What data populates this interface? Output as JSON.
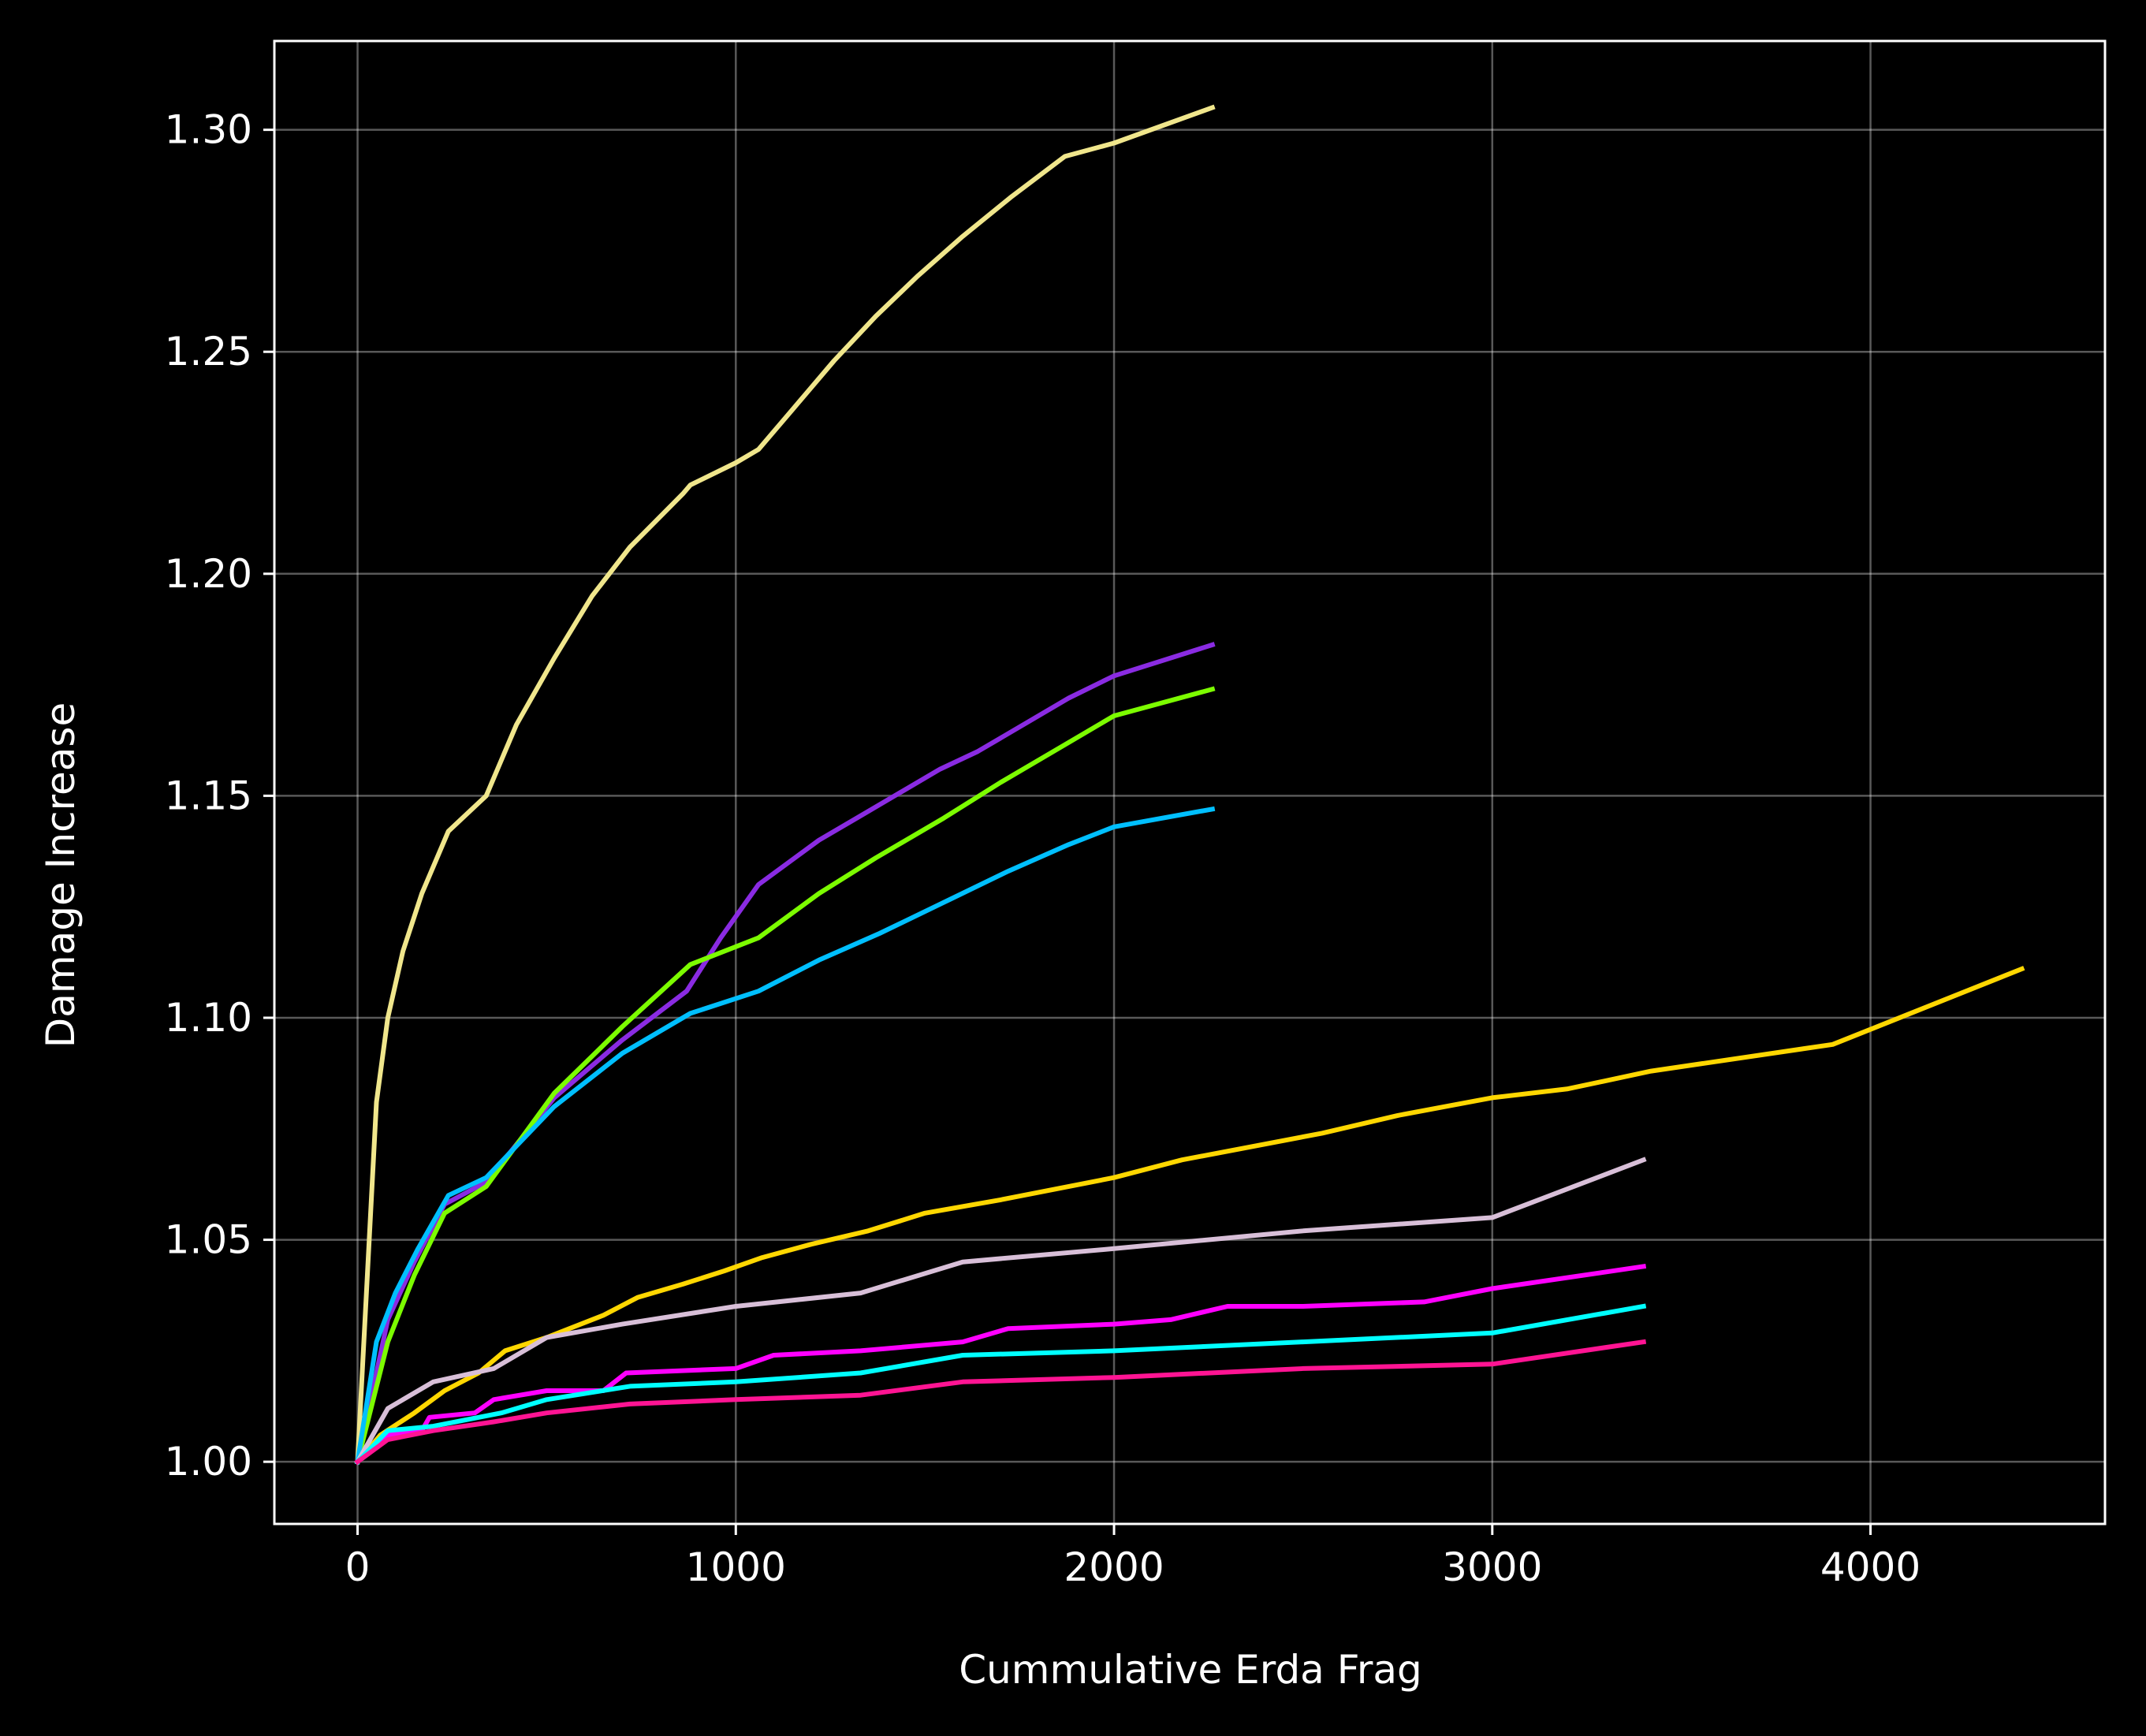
{
  "chart_data": {
    "type": "line",
    "title": "",
    "xlabel": "Cummulative Erda Frag",
    "ylabel": "Damage Increase",
    "xlim": [
      -220,
      4620
    ],
    "ylim": [
      0.986,
      1.32
    ],
    "xticks": [
      0,
      1000,
      2000,
      3000,
      4000
    ],
    "xtick_labels": [
      "0",
      "1000",
      "2000",
      "3000",
      "4000"
    ],
    "yticks": [
      1.0,
      1.05,
      1.1,
      1.15,
      1.2,
      1.25,
      1.3
    ],
    "ytick_labels": [
      "1.00",
      "1.05",
      "1.10",
      "1.15",
      "1.20",
      "1.25",
      "1.30"
    ],
    "grid": true,
    "background": "#000000",
    "series": [
      {
        "color": "#f0e68c",
        "x": [
          0,
          50,
          80,
          120,
          170,
          240,
          340,
          420,
          520,
          620,
          720,
          860,
          880,
          1000,
          1060,
          1150,
          1260,
          1370,
          1480,
          1600,
          1730,
          1870,
          2000,
          2260
        ],
        "y": [
          1.0,
          1.081,
          1.1,
          1.115,
          1.128,
          1.142,
          1.15,
          1.166,
          1.181,
          1.195,
          1.206,
          1.218,
          1.22,
          1.225,
          1.228,
          1.237,
          1.248,
          1.258,
          1.267,
          1.276,
          1.285,
          1.294,
          1.297,
          1.305
        ]
      },
      {
        "color": "#8a2be2",
        "x": [
          0,
          80,
          150,
          230,
          340,
          520,
          700,
          870,
          960,
          1060,
          1220,
          1320,
          1540,
          1640,
          1880,
          2000,
          2260
        ],
        "y": [
          1.0,
          1.032,
          1.045,
          1.058,
          1.063,
          1.082,
          1.095,
          1.106,
          1.118,
          1.13,
          1.14,
          1.145,
          1.156,
          1.16,
          1.172,
          1.177,
          1.184
        ]
      },
      {
        "color": "#7cfc00",
        "x": [
          0,
          80,
          150,
          230,
          340,
          520,
          700,
          880,
          1060,
          1220,
          1370,
          1550,
          1700,
          1880,
          2000,
          2260
        ],
        "y": [
          1.0,
          1.027,
          1.042,
          1.056,
          1.062,
          1.083,
          1.098,
          1.112,
          1.118,
          1.128,
          1.136,
          1.145,
          1.153,
          1.162,
          1.168,
          1.174
        ]
      },
      {
        "color": "#00bfff",
        "x": [
          0,
          50,
          100,
          160,
          240,
          340,
          520,
          700,
          880,
          1060,
          1220,
          1380,
          1550,
          1720,
          1880,
          2000,
          2260
        ],
        "y": [
          1.0,
          1.027,
          1.038,
          1.048,
          1.06,
          1.064,
          1.08,
          1.092,
          1.101,
          1.106,
          1.113,
          1.119,
          1.126,
          1.133,
          1.139,
          1.143,
          1.147
        ]
      },
      {
        "color": "#ffd700",
        "x": [
          0,
          60,
          150,
          230,
          320,
          390,
          500,
          650,
          740,
          860,
          970,
          1070,
          1200,
          1350,
          1500,
          1700,
          2000,
          2180,
          2550,
          2750,
          3000,
          3200,
          3420,
          3900,
          4400
        ],
        "y": [
          1.0,
          1.006,
          1.011,
          1.016,
          1.02,
          1.025,
          1.028,
          1.033,
          1.037,
          1.04,
          1.043,
          1.046,
          1.049,
          1.052,
          1.056,
          1.059,
          1.064,
          1.068,
          1.074,
          1.078,
          1.082,
          1.084,
          1.088,
          1.094,
          1.111
        ]
      },
      {
        "color": "#d8bfd8",
        "x": [
          0,
          80,
          200,
          360,
          500,
          700,
          1000,
          1330,
          1600,
          2000,
          2500,
          3000,
          3400
        ],
        "y": [
          1.0,
          1.012,
          1.018,
          1.021,
          1.028,
          1.031,
          1.035,
          1.038,
          1.045,
          1.048,
          1.052,
          1.055,
          1.068
        ]
      },
      {
        "color": "#ff00ff",
        "x": [
          0,
          80,
          170,
          190,
          310,
          360,
          500,
          650,
          710,
          1000,
          1100,
          1330,
          1600,
          1720,
          2000,
          2150,
          2300,
          2500,
          2820,
          3000,
          3400
        ],
        "y": [
          1.0,
          1.006,
          1.007,
          1.01,
          1.011,
          1.014,
          1.016,
          1.016,
          1.02,
          1.021,
          1.024,
          1.025,
          1.027,
          1.03,
          1.031,
          1.032,
          1.035,
          1.035,
          1.036,
          1.039,
          1.044
        ]
      },
      {
        "color": "#00ffff",
        "x": [
          0,
          80,
          200,
          380,
          500,
          720,
          1000,
          1330,
          1600,
          2000,
          2500,
          3000,
          3400
        ],
        "y": [
          1.0,
          1.007,
          1.008,
          1.011,
          1.014,
          1.017,
          1.018,
          1.02,
          1.024,
          1.025,
          1.027,
          1.029,
          1.035
        ]
      },
      {
        "color": "#ff1493",
        "x": [
          0,
          80,
          200,
          360,
          500,
          720,
          1000,
          1330,
          1600,
          2000,
          2500,
          3000,
          3400
        ],
        "y": [
          1.0,
          1.005,
          1.007,
          1.009,
          1.011,
          1.013,
          1.014,
          1.015,
          1.018,
          1.019,
          1.021,
          1.022,
          1.027
        ]
      }
    ]
  }
}
